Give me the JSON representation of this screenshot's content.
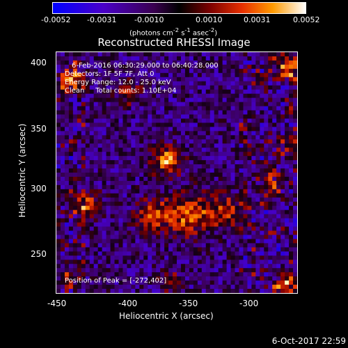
{
  "colorbar": {
    "ticks": [
      "-0.0052",
      "-0.0031",
      "-0.0010",
      "0.0010",
      "0.0031",
      "0.0052"
    ],
    "unit_prefix": "(photons cm",
    "unit_exp1": "-2",
    "unit_mid": " s",
    "unit_exp2": "-1",
    "unit_suffix": " asec",
    "unit_exp3": "-2",
    "unit_close": ")"
  },
  "title": "Reconstructed RHESSI Image",
  "annotations": {
    "time_range": "6-Feb-2016 06:30:29.000 to 06:40:28.000",
    "detectors": "Detectors: 1F 5F 7F, Att 0",
    "energy": "Energy Range: 12.0 - 25.0 keV",
    "clean": "Clean     Total counts: 1.10E+04",
    "peak": "Position of Peak = [-272,402]"
  },
  "axes": {
    "xlabel": "Heliocentric X (arcsec)",
    "ylabel": "Heliocentric Y (arcsec)",
    "xticks": [
      "-450",
      "-400",
      "-350",
      "-300"
    ],
    "yticks": [
      "400",
      "350",
      "300",
      "250"
    ]
  },
  "timestamp": "6-Oct-2017 22:59",
  "colors": {
    "background": "#000000",
    "foreground": "#ffffff"
  }
}
